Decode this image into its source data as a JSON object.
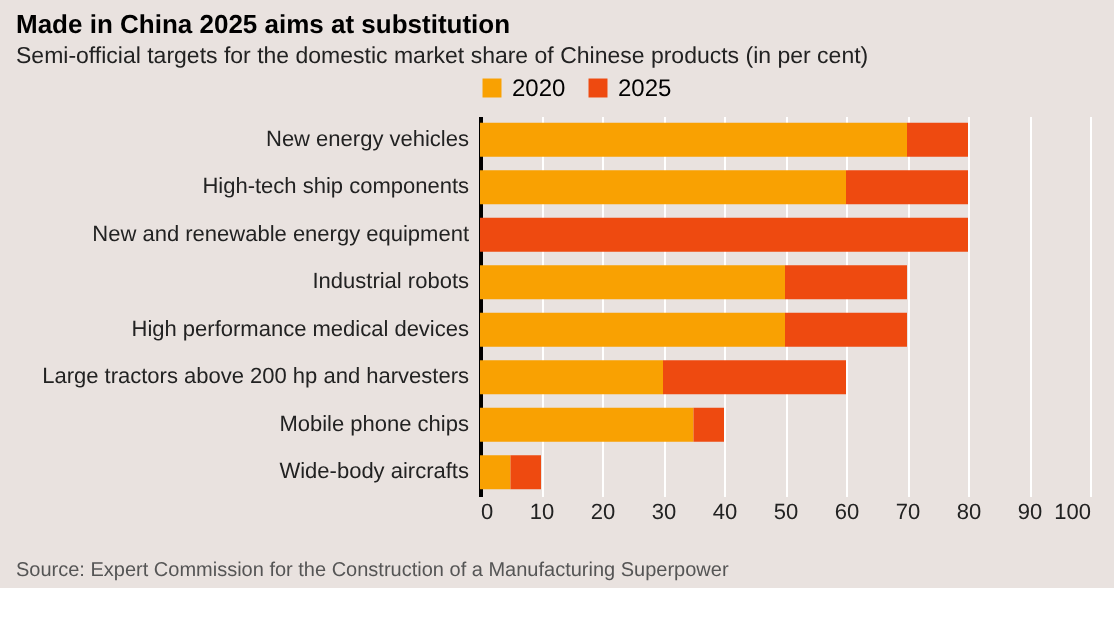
{
  "chart_data": {
    "type": "bar",
    "orientation": "horizontal",
    "stacked": true,
    "title": "Made in China 2025 aims at substitution",
    "subtitle": "Semi-official targets for the domestic market share of Chinese products (in per cent)",
    "categories": [
      "New energy vehicles",
      "High-tech ship components",
      "New and renewable energy equipment",
      "Industrial robots",
      "High performance medical devices",
      "Large tractors above 200 hp and harvesters",
      "Mobile phone chips",
      "Wide-body aircrafts"
    ],
    "series": [
      {
        "name": "2020",
        "color": "#f9a102",
        "values": [
          70,
          60,
          null,
          50,
          50,
          30,
          35,
          5
        ]
      },
      {
        "name": "2025",
        "color": "#ee4a10",
        "values": [
          10,
          20,
          80,
          20,
          20,
          30,
          5,
          5
        ]
      }
    ],
    "xlim": [
      0,
      100
    ],
    "xticks": [
      0,
      10,
      20,
      30,
      40,
      50,
      60,
      70,
      80,
      90,
      100
    ],
    "grid": "x",
    "legend": "top left",
    "annotations": [
      "Source: Expert Commission for the Construction of a Manufacturing Superpower"
    ]
  }
}
